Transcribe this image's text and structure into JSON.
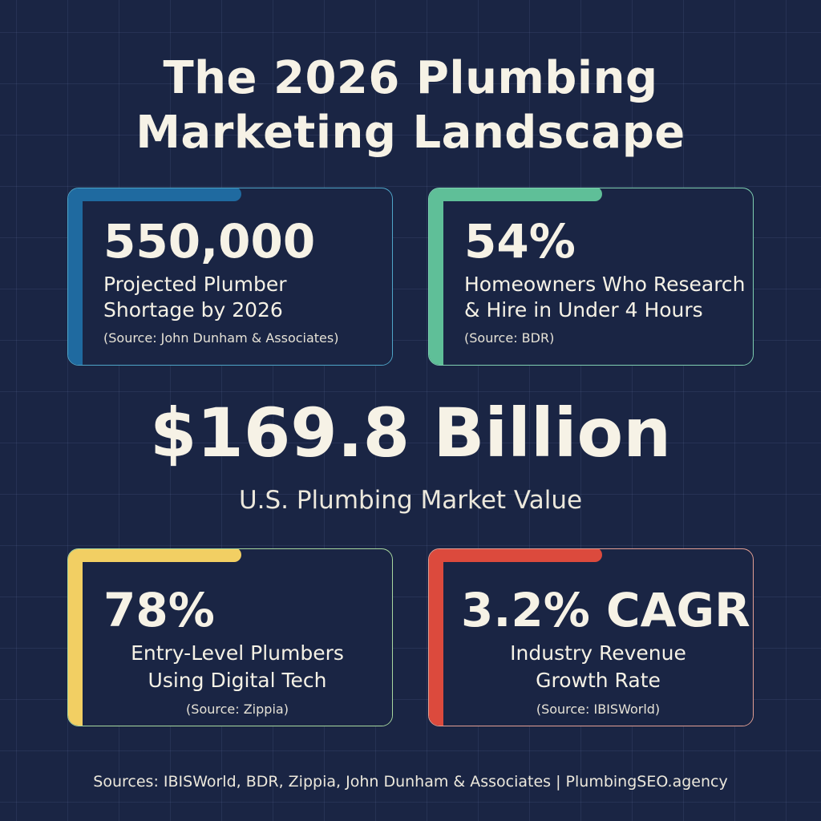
{
  "title": {
    "line1": "The 2026 Plumbing",
    "line2": "Marketing Landscape"
  },
  "cards": [
    {
      "stat": "550,000",
      "label_line1": "Projected Plumber",
      "label_line2": "Shortage by 2026",
      "source": "(Source: John Dunham & Associates)",
      "accent_color": "#1f6aa0"
    },
    {
      "stat": "54%",
      "label_line1": "Homeowners Who Research",
      "label_line2": "& Hire in Under 4 Hours",
      "source": "(Source: BDR)",
      "accent_color": "#5fbf98"
    },
    {
      "stat": "78%",
      "label_line1": "Entry-Level Plumbers",
      "label_line2": "Using Digital Tech",
      "source": "(Source: Zippia)",
      "accent_color": "#f2cf63"
    },
    {
      "stat": "3.2% CAGR",
      "label_line1": "Industry Revenue",
      "label_line2": "Growth Rate",
      "source": "(Source: IBISWorld)",
      "accent_color": "#dc4a3d"
    }
  ],
  "center": {
    "value": "$169.8 Billion",
    "label": "U.S. Plumbing Market Value"
  },
  "footer": "Sources: IBISWorld, BDR, Zippia, John Dunham & Associates | PlumbingSEO.agency",
  "colors": {
    "background": "#1a2544",
    "text": "#f6f2e6"
  }
}
